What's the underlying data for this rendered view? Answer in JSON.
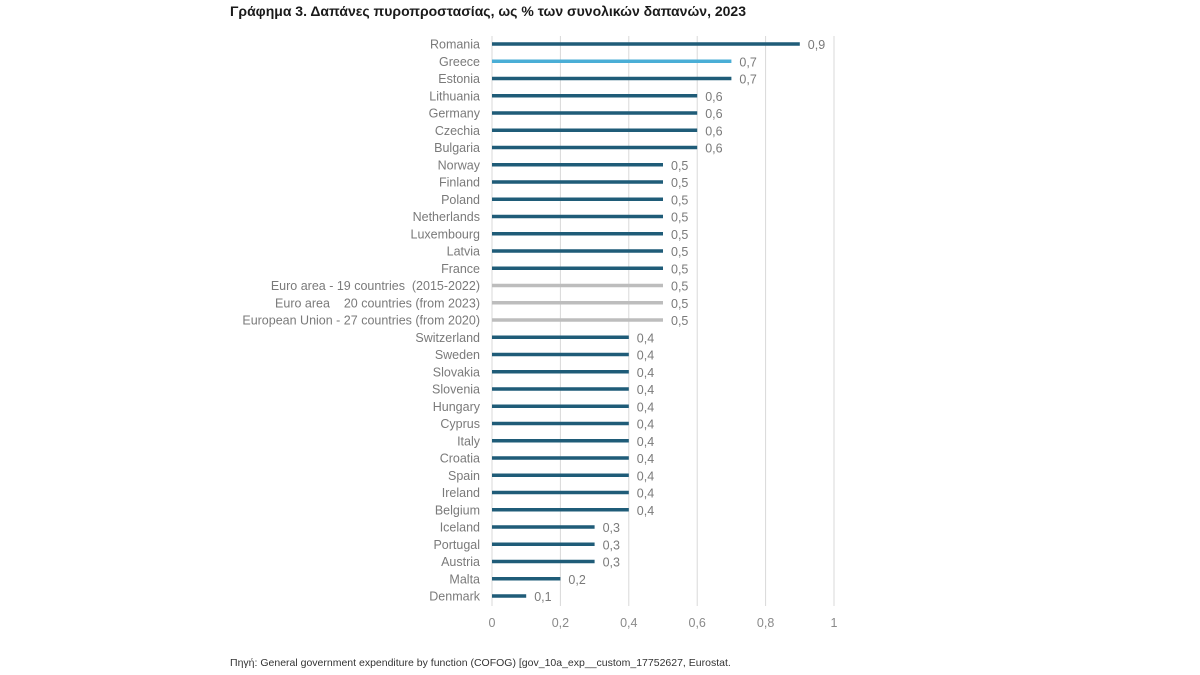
{
  "chart_data": {
    "type": "bar",
    "orientation": "horizontal",
    "title": "Γράφημα 3. Δαπάνες πυροπροστασίας, ως % των συνολικών δαπανών, 2023",
    "source": "Πηγή: General government expenditure by function (COFOG) [gov_10a_exp__custom_17752627, Eurostat.",
    "xlabel": "",
    "ylabel": "",
    "xlim": [
      0,
      1
    ],
    "xticks": [
      0,
      0.2,
      0.4,
      0.6,
      0.8,
      1
    ],
    "xtick_labels": [
      "0",
      "0,2",
      "0,4",
      "0,6",
      "0,8",
      "1"
    ],
    "grid": true,
    "legend": "none",
    "colors": {
      "default": "#1f5c78",
      "highlight": "#4aaed6",
      "aggregate": "#bdbdbd",
      "grid": "#d9d9d9"
    },
    "categories": [
      "Romania",
      "Greece",
      "Estonia",
      "Lithuania",
      "Germany",
      "Czechia",
      "Bulgaria",
      "Norway",
      "Finland",
      "Poland",
      "Netherlands",
      "Luxembourg",
      "Latvia",
      "France",
      "Euro area - 19 countries  (2015-2022)",
      "Euro area    20 countries (from 2023)",
      "European Union - 27 countries (from 2020)",
      "Switzerland",
      "Sweden",
      "Slovakia",
      "Slovenia",
      "Hungary",
      "Cyprus",
      "Italy",
      "Croatia",
      "Spain",
      "Ireland",
      "Belgium",
      "Iceland",
      "Portugal",
      "Austria",
      "Malta",
      "Denmark"
    ],
    "values": [
      0.9,
      0.7,
      0.7,
      0.6,
      0.6,
      0.6,
      0.6,
      0.5,
      0.5,
      0.5,
      0.5,
      0.5,
      0.5,
      0.5,
      0.5,
      0.5,
      0.5,
      0.4,
      0.4,
      0.4,
      0.4,
      0.4,
      0.4,
      0.4,
      0.4,
      0.4,
      0.4,
      0.4,
      0.3,
      0.3,
      0.3,
      0.2,
      0.1
    ],
    "value_labels": [
      "0,9",
      "0,7",
      "0,7",
      "0,6",
      "0,6",
      "0,6",
      "0,6",
      "0,5",
      "0,5",
      "0,5",
      "0,5",
      "0,5",
      "0,5",
      "0,5",
      "0,5",
      "0,5",
      "0,5",
      "0,4",
      "0,4",
      "0,4",
      "0,4",
      "0,4",
      "0,4",
      "0,4",
      "0,4",
      "0,4",
      "0,4",
      "0,4",
      "0,3",
      "0,3",
      "0,3",
      "0,2",
      "0,1"
    ],
    "bar_kind": [
      "default",
      "highlight",
      "default",
      "default",
      "default",
      "default",
      "default",
      "default",
      "default",
      "default",
      "default",
      "default",
      "default",
      "default",
      "aggregate",
      "aggregate",
      "aggregate",
      "default",
      "default",
      "default",
      "default",
      "default",
      "default",
      "default",
      "default",
      "default",
      "default",
      "default",
      "default",
      "default",
      "default",
      "default",
      "default"
    ]
  }
}
